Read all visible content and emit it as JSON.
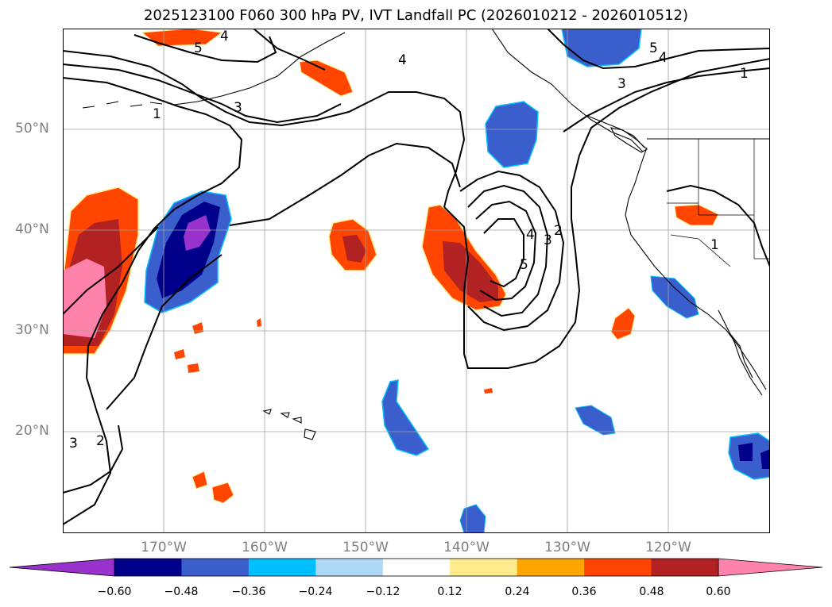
{
  "title": "2025123100 F060 300 hPa PV, IVT Landfall PC (2026010212 - 2026010512)",
  "map": {
    "lon_range": [
      -180,
      -110
    ],
    "lat_range": [
      10,
      60
    ],
    "lat_labels": [
      {
        "lat": 50,
        "label": "50°N"
      },
      {
        "lat": 40,
        "label": "40°N"
      },
      {
        "lat": 30,
        "label": "30°N"
      },
      {
        "lat": 20,
        "label": "20°N"
      }
    ],
    "lon_labels": [
      {
        "lon": -170,
        "label": "170°W"
      },
      {
        "lon": -160,
        "label": "160°W"
      },
      {
        "lon": -150,
        "label": "150°W"
      },
      {
        "lon": -140,
        "label": "140°W"
      },
      {
        "lon": -130,
        "label": "130°W"
      },
      {
        "lon": -120,
        "label": "120°W"
      }
    ],
    "grid": true,
    "contour_labels": [
      "1",
      "2",
      "3",
      "4",
      "5"
    ]
  },
  "colorbar": {
    "colors": [
      "#9932CC",
      "#00008B",
      "#3A5FCD",
      "#00BFFF",
      "#ADD8F6",
      "#FFFFFF",
      "#FFEB8C",
      "#FFA500",
      "#FF4500",
      "#B22222",
      "#FF82AB"
    ],
    "ticks": [
      "−0.60",
      "−0.48",
      "−0.36",
      "−0.24",
      "−0.12",
      "0.12",
      "0.24",
      "0.36",
      "0.48",
      "0.60"
    ],
    "extend": "both"
  }
}
